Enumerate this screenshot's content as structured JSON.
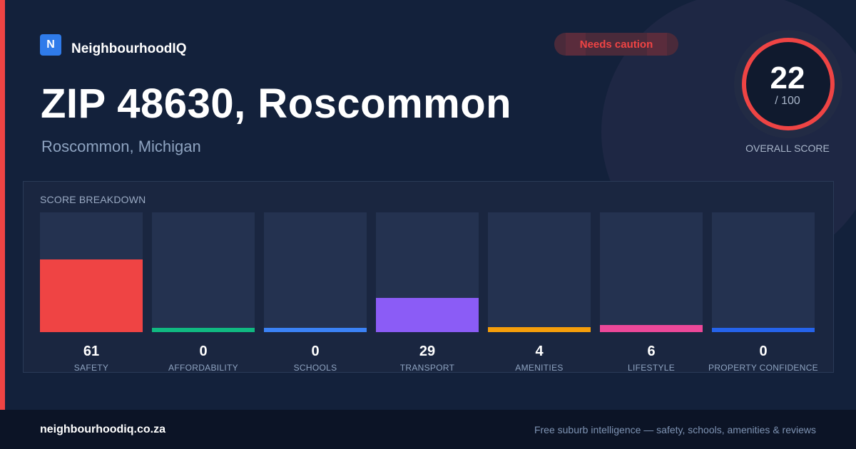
{
  "brand": {
    "logo_letter": "N",
    "name": "NeighbourhoodIQ"
  },
  "badge": {
    "label": "Needs caution",
    "color": "#ef4444"
  },
  "location": {
    "title": "ZIP 48630, Roscommon",
    "subtitle": "Roscommon, Michigan"
  },
  "score": {
    "value": "22",
    "max_label": "/ 100",
    "label": "OVERALL SCORE",
    "fraction": 0.22,
    "ring_color": "#ef4444"
  },
  "breakdown": {
    "title": "SCORE BREAKDOWN",
    "metrics": [
      {
        "label": "SAFETY",
        "value": "61",
        "color": "#ef4444"
      },
      {
        "label": "AFFORDABILITY",
        "value": "0",
        "color": "#10b981"
      },
      {
        "label": "SCHOOLS",
        "value": "0",
        "color": "#3b82f6"
      },
      {
        "label": "TRANSPORT",
        "value": "29",
        "color": "#8b5cf6"
      },
      {
        "label": "AMENITIES",
        "value": "4",
        "color": "#f59e0b"
      },
      {
        "label": "LIFESTYLE",
        "value": "6",
        "color": "#ec4899"
      },
      {
        "label": "PROPERTY CONFIDENCE",
        "value": "0",
        "color": "#2563eb"
      }
    ]
  },
  "footer": {
    "url": "neighbourhoodiq.co.za",
    "tagline": "Free suburb intelligence — safety, schools, amenities & reviews"
  }
}
